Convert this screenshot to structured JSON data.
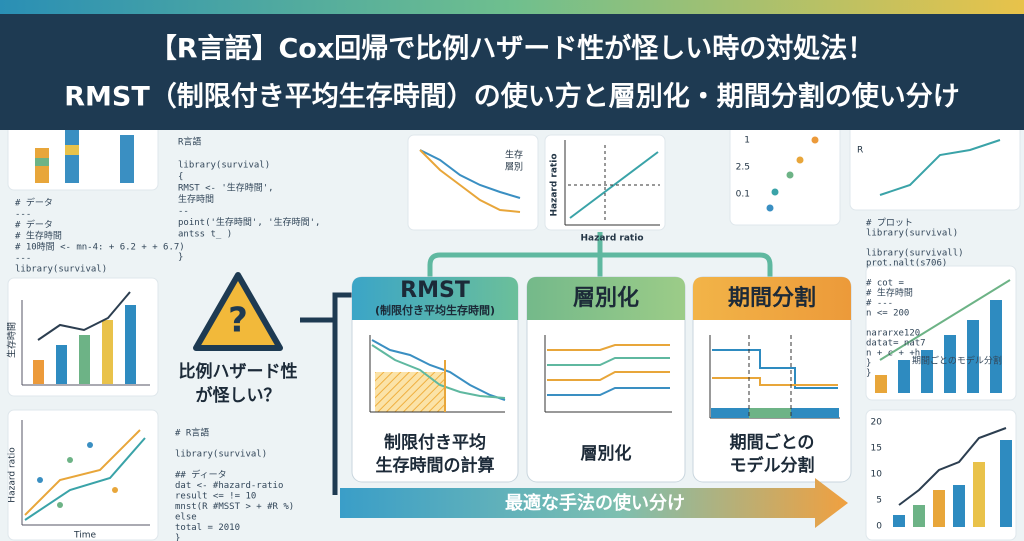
{
  "header": {
    "title_lines": [
      "【R言語】Cox回帰で比例ハザード性が怪しい時の対処法！",
      "RMST（制限付き平均生存時間）の使い方と層別化・期間分割の使い分け"
    ]
  },
  "center": {
    "question_lines": [
      "比例ハザード性",
      "が怪しい？"
    ],
    "cards": [
      {
        "title": "RMST",
        "subtitle": "(制限付き平均生存時間)",
        "caption_lines": [
          "制限付き平均",
          "生存時間の計算"
        ]
      },
      {
        "title": "層別化",
        "caption_lines": [
          "層別化"
        ]
      },
      {
        "title": "期間分割",
        "caption_lines": [
          "期間ごとの",
          "モデル分割"
        ]
      }
    ],
    "arrow_label": "最適な手法の使い分け"
  },
  "background": {
    "left_code": [
      "# データ",
      "---",
      "# データ",
      "# 生存時間",
      "# 10時間 <- mn-4: + 6.2 + + 6.7)",
      "---",
      "library(survival)"
    ],
    "top_code": [
      "R言語",
      "",
      "library(survival)",
      "{",
      "  RMST <- '生存時間',",
      "         生存時間",
      "  --",
      "  point('生存時間', '生存時間',",
      "        antss t_ )",
      "",
      "}"
    ],
    "bottom_code": [
      "# R言語",
      "",
      "library(survival)",
      "",
      "## ディータ",
      "  dat <- #hazard-ratio",
      "  result <= != 10",
      "    mnst(R #MSST > + #R %)",
      "  else",
      "    total = 2010",
      "}"
    ],
    "right_code": [
      "# プロット",
      "library(survival)",
      "",
      "library(survivall)",
      "prot.nalt(s706)",
      "",
      "# cot =",
      "#   生存時間",
      "# ---",
      "n <= 200",
      "",
      "  nararxe120",
      "  datat= nat7",
      "  n + c + +h",
      "}",
      "}"
    ],
    "right_code_note": "期間ごとのモデル分割",
    "chart_labels": {
      "left_mid_y": "生存時間",
      "left_bottom_y": "Hazard ratio",
      "left_bottom_x": "Time",
      "top_y": "Hazard ratio",
      "top_x": "Hazard ratio",
      "legend": [
        "生存",
        "層別"
      ],
      "dot_ticks": [
        "1",
        "2.5",
        "0.1"
      ],
      "right_top_y": "R",
      "right_bottom_ticks": [
        "20",
        "15",
        "10",
        "5",
        "0"
      ]
    }
  }
}
